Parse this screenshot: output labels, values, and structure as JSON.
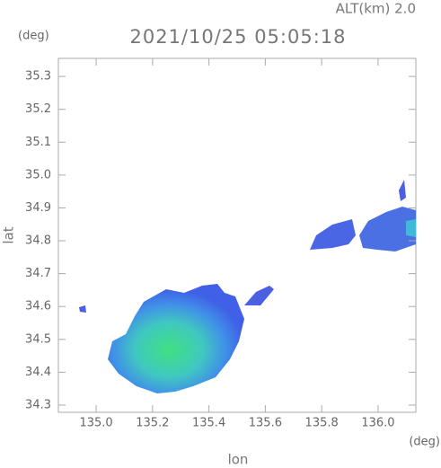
{
  "chart_data": {
    "type": "map",
    "title": "2021/10/25 05:05:18",
    "subtitle": "ALT(km) 2.0",
    "x_label": "lon",
    "y_label": "lat",
    "x_unit": "(deg)",
    "y_unit": "(deg)",
    "xlim": [
      134.866,
      136.134
    ],
    "ylim": [
      34.278,
      35.355
    ],
    "xticks": [
      {
        "value": 135,
        "label": "135.0"
      },
      135.2,
      135.4,
      135.6,
      135.8,
      {
        "value": 136,
        "label": "136.0"
      }
    ],
    "yticks": [
      34.3,
      34.4,
      34.5,
      34.6,
      34.7,
      34.8,
      34.9,
      {
        "value": 35,
        "label": "35.0"
      },
      35.1,
      35.2,
      35.3
    ]
  }
}
